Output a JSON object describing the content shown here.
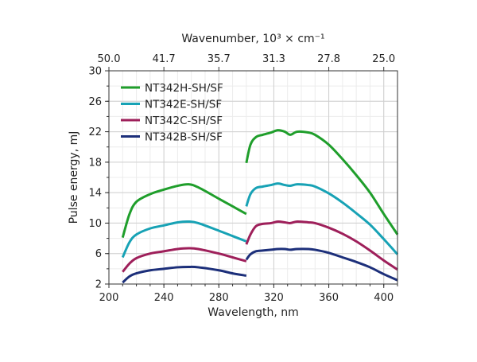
{
  "chart_data": {
    "type": "line",
    "xlabel": "Wavelength, nm",
    "ylabel": "Pulse energy, mJ",
    "top_axis_label": "Wavenumber, 10³ × cm⁻¹",
    "xlim": [
      200,
      410
    ],
    "ylim": [
      2,
      30
    ],
    "x_ticks": [
      200,
      240,
      280,
      320,
      360,
      400
    ],
    "y_ticks": [
      2,
      6,
      10,
      14,
      18,
      22,
      26,
      30
    ],
    "top_ticks": [
      {
        "label": "50.0",
        "at_wavelength": 200
      },
      {
        "label": "41.7",
        "at_wavelength": 240
      },
      {
        "label": "35.7",
        "at_wavelength": 280
      },
      {
        "label": "31.3",
        "at_wavelength": 320
      },
      {
        "label": "27.8",
        "at_wavelength": 360
      },
      {
        "label": "25.0",
        "at_wavelength": 400
      }
    ],
    "grid": true,
    "legend_position": "top-left",
    "series": [
      {
        "name": "NT342H-SH/SF",
        "color": "#1f9e2b",
        "segments": [
          [
            [
              210,
              8.1
            ],
            [
              215,
              11.2
            ],
            [
              220,
              12.8
            ],
            [
              230,
              13.8
            ],
            [
              240,
              14.4
            ],
            [
              250,
              14.9
            ],
            [
              258,
              15.1
            ],
            [
              265,
              14.7
            ],
            [
              280,
              13.2
            ],
            [
              290,
              12.2
            ],
            [
              300,
              11.2
            ]
          ],
          [
            [
              300,
              17.9
            ],
            [
              303,
              20.3
            ],
            [
              307,
              21.3
            ],
            [
              312,
              21.6
            ],
            [
              318,
              21.9
            ],
            [
              323,
              22.2
            ],
            [
              328,
              22.0
            ],
            [
              332,
              21.6
            ],
            [
              337,
              22.0
            ],
            [
              345,
              21.9
            ],
            [
              350,
              21.6
            ],
            [
              360,
              20.3
            ],
            [
              370,
              18.4
            ],
            [
              380,
              16.3
            ],
            [
              390,
              14.0
            ],
            [
              400,
              11.2
            ],
            [
              410,
              8.5
            ]
          ]
        ]
      },
      {
        "name": "NT342E-SH/SF",
        "color": "#17a2b5",
        "segments": [
          [
            [
              210,
              5.5
            ],
            [
              215,
              7.5
            ],
            [
              220,
              8.5
            ],
            [
              230,
              9.3
            ],
            [
              240,
              9.7
            ],
            [
              250,
              10.1
            ],
            [
              258,
              10.2
            ],
            [
              265,
              10.0
            ],
            [
              280,
              9.0
            ],
            [
              290,
              8.3
            ],
            [
              300,
              7.6
            ]
          ],
          [
            [
              300,
              12.2
            ],
            [
              303,
              13.8
            ],
            [
              307,
              14.6
            ],
            [
              312,
              14.8
            ],
            [
              318,
              15.0
            ],
            [
              323,
              15.2
            ],
            [
              328,
              15.0
            ],
            [
              332,
              14.9
            ],
            [
              337,
              15.1
            ],
            [
              345,
              15.0
            ],
            [
              350,
              14.8
            ],
            [
              360,
              13.9
            ],
            [
              370,
              12.7
            ],
            [
              380,
              11.3
            ],
            [
              390,
              9.8
            ],
            [
              400,
              7.9
            ],
            [
              410,
              5.9
            ]
          ]
        ]
      },
      {
        "name": "NT342C-SH/SF",
        "color": "#9e1f5a",
        "segments": [
          [
            [
              210,
              3.6
            ],
            [
              215,
              4.7
            ],
            [
              220,
              5.4
            ],
            [
              230,
              6.0
            ],
            [
              240,
              6.3
            ],
            [
              250,
              6.6
            ],
            [
              258,
              6.7
            ],
            [
              265,
              6.6
            ],
            [
              280,
              6.0
            ],
            [
              290,
              5.5
            ],
            [
              300,
              5.0
            ]
          ],
          [
            [
              300,
              7.2
            ],
            [
              303,
              8.5
            ],
            [
              307,
              9.6
            ],
            [
              312,
              9.9
            ],
            [
              318,
              10.0
            ],
            [
              323,
              10.2
            ],
            [
              328,
              10.1
            ],
            [
              332,
              10.0
            ],
            [
              337,
              10.2
            ],
            [
              345,
              10.1
            ],
            [
              350,
              10.0
            ],
            [
              360,
              9.4
            ],
            [
              370,
              8.6
            ],
            [
              380,
              7.6
            ],
            [
              390,
              6.4
            ],
            [
              400,
              5.1
            ],
            [
              410,
              3.9
            ]
          ]
        ]
      },
      {
        "name": "NT342B-SH/SF",
        "color": "#1c2f7a",
        "segments": [
          [
            [
              210,
              2.2
            ],
            [
              215,
              3.0
            ],
            [
              220,
              3.4
            ],
            [
              230,
              3.8
            ],
            [
              240,
              4.0
            ],
            [
              250,
              4.2
            ],
            [
              258,
              4.25
            ],
            [
              265,
              4.2
            ],
            [
              280,
              3.8
            ],
            [
              290,
              3.4
            ],
            [
              300,
              3.1
            ]
          ],
          [
            [
              300,
              5.2
            ],
            [
              303,
              5.9
            ],
            [
              307,
              6.3
            ],
            [
              312,
              6.4
            ],
            [
              318,
              6.5
            ],
            [
              323,
              6.6
            ],
            [
              328,
              6.6
            ],
            [
              332,
              6.5
            ],
            [
              337,
              6.6
            ],
            [
              345,
              6.6
            ],
            [
              350,
              6.5
            ],
            [
              360,
              6.1
            ],
            [
              370,
              5.5
            ],
            [
              380,
              4.9
            ],
            [
              390,
              4.2
            ],
            [
              400,
              3.3
            ],
            [
              410,
              2.5
            ]
          ]
        ]
      }
    ]
  }
}
